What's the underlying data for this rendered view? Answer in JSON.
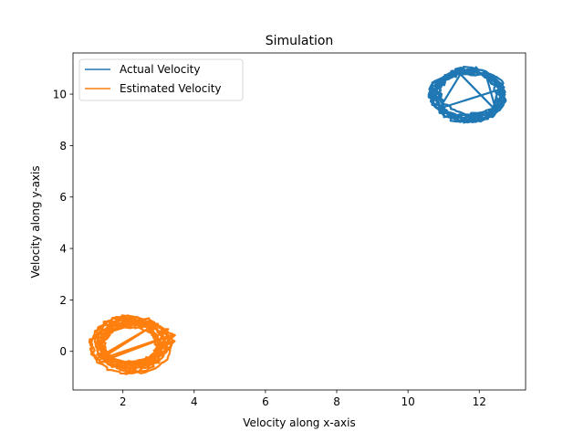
{
  "chart_data": {
    "type": "line",
    "title": "Simulation",
    "xlabel": "Velocity along x-axis",
    "ylabel": "Velocity along y-axis",
    "xlim": [
      0.6,
      13.3
    ],
    "ylim": [
      -1.5,
      11.6
    ],
    "xticks": [
      2,
      4,
      6,
      8,
      10,
      12
    ],
    "yticks": [
      0,
      2,
      4,
      6,
      8,
      10
    ],
    "grid": false,
    "legend_position": "top-left",
    "series": [
      {
        "name": "Actual Velocity",
        "color": "#1f77b4",
        "shape": "noisy-ellipse-loop",
        "center": [
          11.7,
          9.95
        ],
        "radius_x": [
          0.85,
          1.05
        ],
        "radius_y": [
          0.8,
          1.02
        ],
        "tilt": 0.0,
        "loops": 10
      },
      {
        "name": "Estimated Velocity",
        "color": "#ff7f0e",
        "shape": "noisy-ellipse-loop",
        "center": [
          2.25,
          0.28
        ],
        "radius_x": [
          0.72,
          1.12
        ],
        "radius_y": [
          0.7,
          1.08
        ],
        "tilt": 0.25,
        "loops": 14
      }
    ]
  }
}
